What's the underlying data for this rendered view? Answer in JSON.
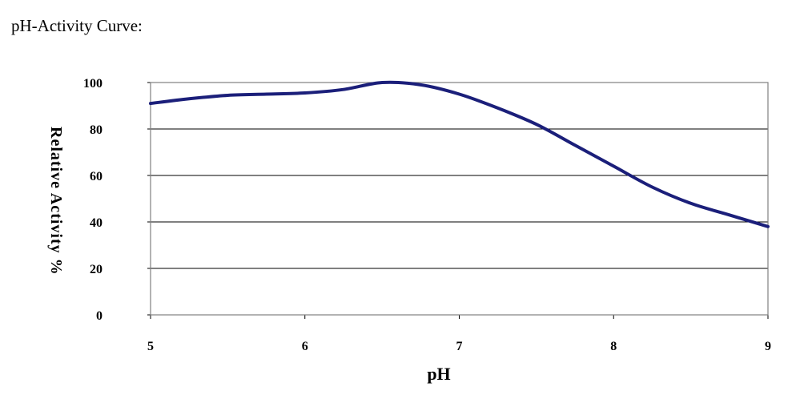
{
  "page": {
    "title": "pH-Activity Curve:"
  },
  "chart_data": {
    "type": "line",
    "title": "",
    "xlabel": "pH",
    "ylabel": "Relative Activity %",
    "xlim": [
      5,
      9
    ],
    "ylim": [
      0,
      100
    ],
    "x_ticks": [
      "5",
      "6",
      "7",
      "8",
      "9"
    ],
    "y_ticks": [
      "0",
      "20",
      "40",
      "60",
      "80",
      "100"
    ],
    "grid": "horizontal",
    "legend": "none",
    "series": [
      {
        "color": "#1b1f7a",
        "x": [
          5.0,
          5.25,
          5.5,
          5.75,
          6.0,
          6.25,
          6.5,
          6.75,
          7.0,
          7.25,
          7.5,
          7.75,
          8.0,
          8.25,
          8.5,
          8.75,
          9.0
        ],
        "y": [
          91,
          93,
          94.5,
          95,
          95.5,
          97,
          100,
          99,
          95,
          89,
          82,
          73,
          64,
          55,
          48,
          43,
          38
        ]
      }
    ]
  }
}
